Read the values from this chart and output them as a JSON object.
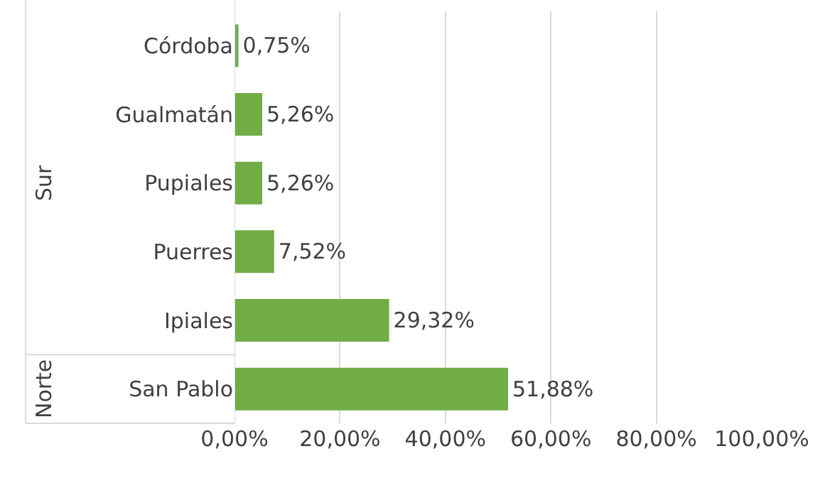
{
  "chart_data": {
    "type": "bar",
    "orientation": "horizontal",
    "categories": [
      "Córdoba",
      "Gualmatán",
      "Pupiales",
      "Puerres",
      "Ipiales",
      "San Pablo"
    ],
    "values": [
      0.75,
      5.26,
      5.26,
      7.52,
      29.32,
      51.88
    ],
    "value_labels": [
      "0,75%",
      "5,26%",
      "5,26%",
      "7,52%",
      "29,32%",
      "51,88%"
    ],
    "color": "#70ad47",
    "xlim": [
      0,
      100
    ],
    "xticks": [
      {
        "value": 0,
        "label": "0,00%"
      },
      {
        "value": 20,
        "label": "20,00%"
      },
      {
        "value": 40,
        "label": "40,00%"
      },
      {
        "value": 60,
        "label": "60,00%"
      },
      {
        "value": 80,
        "label": "80,00%"
      },
      {
        "value": 100,
        "label": "100,00%"
      }
    ],
    "grid": "x",
    "annotations": [
      "Sur",
      "Norte"
    ]
  }
}
